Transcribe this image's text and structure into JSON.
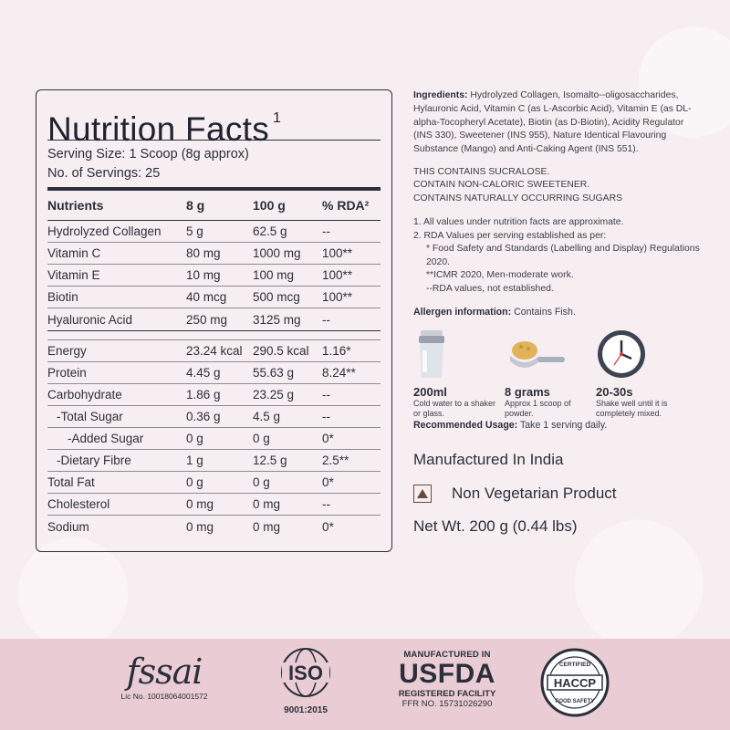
{
  "nutrition": {
    "title": "Nutrition Facts",
    "title_sup": "1",
    "serving_size": "Serving Size: 1 Scoop (8g approx)",
    "servings": "No. of Servings: 25",
    "headers": [
      "Nutrients",
      "8 g",
      "100 g",
      "% RDA²"
    ],
    "group1": [
      [
        "Hydrolyzed Collagen",
        "5 g",
        "62.5 g",
        "--"
      ],
      [
        "Vitamin C",
        "80 mg",
        "1000 mg",
        "100**"
      ],
      [
        "Vitamin E",
        "10 mg",
        "100 mg",
        "100**"
      ],
      [
        "Biotin",
        "40 mcg",
        "500 mcg",
        "100**"
      ],
      [
        "Hyaluronic Acid",
        "250 mg",
        "3125 mg",
        "--"
      ]
    ],
    "group2": [
      [
        "Energy",
        "23.24 kcal",
        "290.5 kcal",
        "1.16*"
      ],
      [
        "Protein",
        "4.45 g",
        "55.63 g",
        "8.24**"
      ],
      [
        "Carbohydrate",
        "1.86 g",
        "23.25 g",
        "--"
      ],
      [
        "-Total Sugar",
        "0.36 g",
        "4.5 g",
        "--"
      ],
      [
        "-Added Sugar",
        "0 g",
        "0 g",
        "0*"
      ],
      [
        "-Dietary Fibre",
        "1 g",
        "12.5 g",
        "2.5**"
      ],
      [
        "Total Fat",
        "0 g",
        "0 g",
        "0*"
      ],
      [
        "Cholesterol",
        "0 mg",
        "0 mg",
        "--"
      ],
      [
        "Sodium",
        "0 mg",
        "0 mg",
        "0*"
      ]
    ]
  },
  "ingredients": {
    "label": "Ingredients:",
    "text": "Hydrolyzed Collagen, Isomalto--oligosaccharides, Hylauronic Acid, Vitamin C (as L-Ascorbic Acid), Vitamin E (as DL-alpha-Tocopheryl Acetate), Biotin (as D-Biotin), Acidity Regulator (INS 330), Sweetener (INS 955), Nature Identical Flavouring Substance (Mango) and Anti-Caking Agent (INS 551)."
  },
  "contains": [
    "THIS CONTAINS SUCRALOSE.",
    "CONTAIN NON-CALORIC SWEETENER.",
    "CONTAINS NATURALLY OCCURRING SUGARS"
  ],
  "notes": {
    "n1": "1.  All values under nutrition facts  are approximate.",
    "n2": "2.  RDA Values per serving established as per:",
    "n3": "* Food Safety and Standards (Labelling and Display) Regulations 2020.",
    "n4": "**ICMR 2020, Men-moderate work.",
    "n5": "--RDA values, not established."
  },
  "allergen": {
    "label": "Allergen information:",
    "text": " Contains Fish."
  },
  "usage": [
    {
      "big": "200ml",
      "small": "Cold water to a shaker or glass.",
      "icon": "shaker-icon"
    },
    {
      "big": "8 grams",
      "small": "Approx 1 scoop of powder.",
      "icon": "scoop-icon"
    },
    {
      "big": "20-30s",
      "small": "Shake well until it is completely mixed.",
      "icon": "clock-icon"
    }
  ],
  "recommended": {
    "label": "Recommended Usage:",
    "text": " Take 1 serving daily."
  },
  "manufactured": "Manufactured In India",
  "non_veg": "Non Vegetarian Product",
  "net_wt": "Net Wt.  200 g (0.44 lbs)",
  "footer": {
    "fssai_mark": "fssai",
    "fssai_lic": "Lic No. 10018064001572",
    "iso_caption": "9001:2015",
    "usfda_line1": "MANUFACTURED IN",
    "usfda_line2": "USFDA",
    "usfda_line3": "REGISTERED FACILITY",
    "usfda_line4": "FFR NO. 15731026290"
  },
  "colors": {
    "text": "#2b2f3a",
    "background": "#f7eef1",
    "footer": "#e9ccd4",
    "nonveg": "#6b4a3a"
  }
}
